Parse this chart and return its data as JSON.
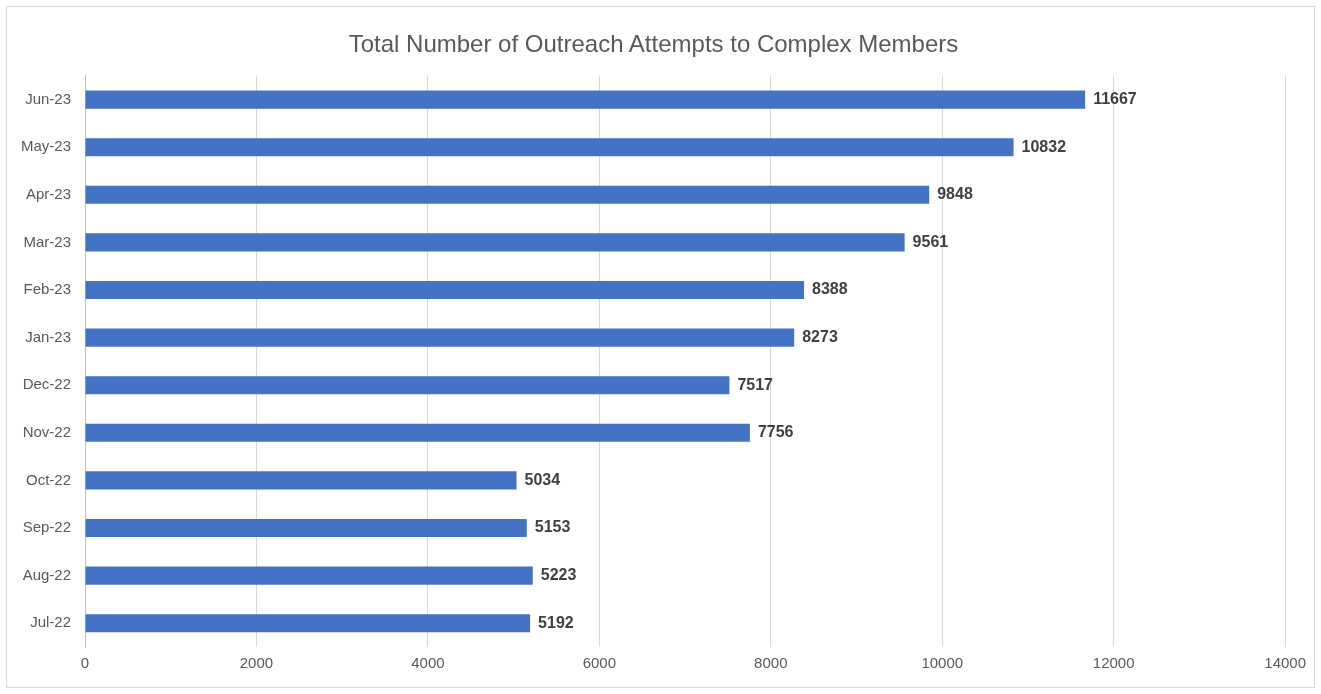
{
  "chart_data": {
    "type": "bar",
    "orientation": "horizontal",
    "title": "Total Number of Outreach Attempts to Complex Members",
    "categories": [
      "Jun-23",
      "May-23",
      "Apr-23",
      "Mar-23",
      "Feb-23",
      "Jan-23",
      "Dec-22",
      "Nov-22",
      "Oct-22",
      "Sep-22",
      "Aug-22",
      "Jul-22"
    ],
    "values": [
      11667,
      10832,
      9848,
      9561,
      8388,
      8273,
      7517,
      7756,
      5034,
      5153,
      5223,
      5192
    ],
    "color": "#4472c4",
    "xlim": [
      0,
      14000
    ],
    "xticks": [
      0,
      2000,
      4000,
      6000,
      8000,
      10000,
      12000,
      14000
    ],
    "grid": "x",
    "data_labels": true
  }
}
